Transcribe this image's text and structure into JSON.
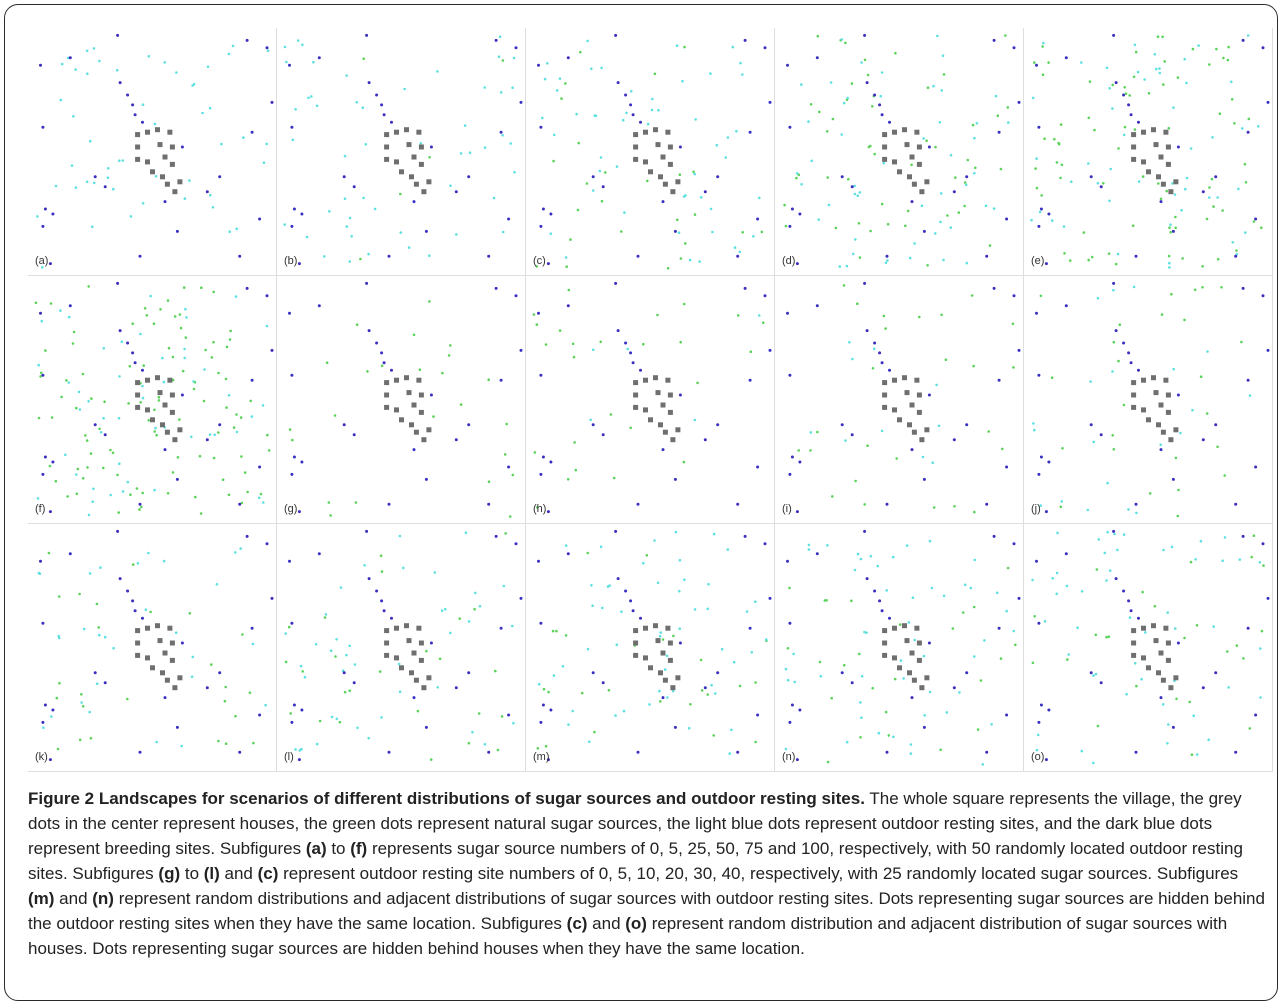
{
  "panels": [
    {
      "label": "(a)",
      "sugar": 0,
      "resting": 50
    },
    {
      "label": "(b)",
      "sugar": 5,
      "resting": 50
    },
    {
      "label": "(c)",
      "sugar": 25,
      "resting": 50
    },
    {
      "label": "(d)",
      "sugar": 50,
      "resting": 50
    },
    {
      "label": "(e)",
      "sugar": 75,
      "resting": 50
    },
    {
      "label": "(f)",
      "sugar": 100,
      "resting": 50
    },
    {
      "label": "(g)",
      "sugar": 25,
      "resting": 0
    },
    {
      "label": "(h)",
      "sugar": 25,
      "resting": 5
    },
    {
      "label": "(i)",
      "sugar": 25,
      "resting": 10
    },
    {
      "label": "(j)",
      "sugar": 25,
      "resting": 20
    },
    {
      "label": "(k)",
      "sugar": 25,
      "resting": 30
    },
    {
      "label": "(l)",
      "sugar": 25,
      "resting": 40
    },
    {
      "label": "(m)",
      "sugar": 25,
      "resting": 50
    },
    {
      "label": "(n)",
      "sugar": 25,
      "resting": 50
    },
    {
      "label": "(o)",
      "sugar": 25,
      "resting": 50
    }
  ],
  "colors": {
    "house": "#6f6f6f",
    "sugar_source": "#5bd35b",
    "resting_site": "#5ee0e0",
    "breeding_site": "#3a2fbf"
  },
  "caption": {
    "title": "Figure 2 Landscapes for scenarios of different distributions of sugar sources and outdoor resting sites.",
    "s1": " The whole square represents the village, the grey dots in the center represent houses, the green dots represent natural sugar sources, the light blue dots represent outdoor resting sites, and the dark blue dots represent breeding sites. Subfigures ",
    "r1": "(a)",
    "s2": " to ",
    "r2": "(f)",
    "s3": " represents sugar source numbers of 0, 5, 25, 50, 75 and 100, respectively, with 50 randomly located outdoor resting sites. Subfigures ",
    "r3": "(g)",
    "s4": " to ",
    "r4": "(l)",
    "s5": " and ",
    "r5": "(c)",
    "s6": " represent outdoor resting site numbers of 0, 5, 10, 20, 30, 40, respectively, with 25 randomly located sugar sources. Subfigures ",
    "r6": "(m)",
    "s7": " and ",
    "r7": "(n)",
    "s8": " represent random distributions and adjacent distributions of sugar sources with outdoor resting sites. Dots representing sugar sources are hidden behind the outdoor resting sites when they have the same location. Subfigures ",
    "r8": "(c)",
    "s9": " and ",
    "r9": "(o)",
    "s10": " represent random distribution and adjacent distribution of sugar sources with houses. Dots representing sugar sources are hidden behind houses when they have the same location."
  }
}
